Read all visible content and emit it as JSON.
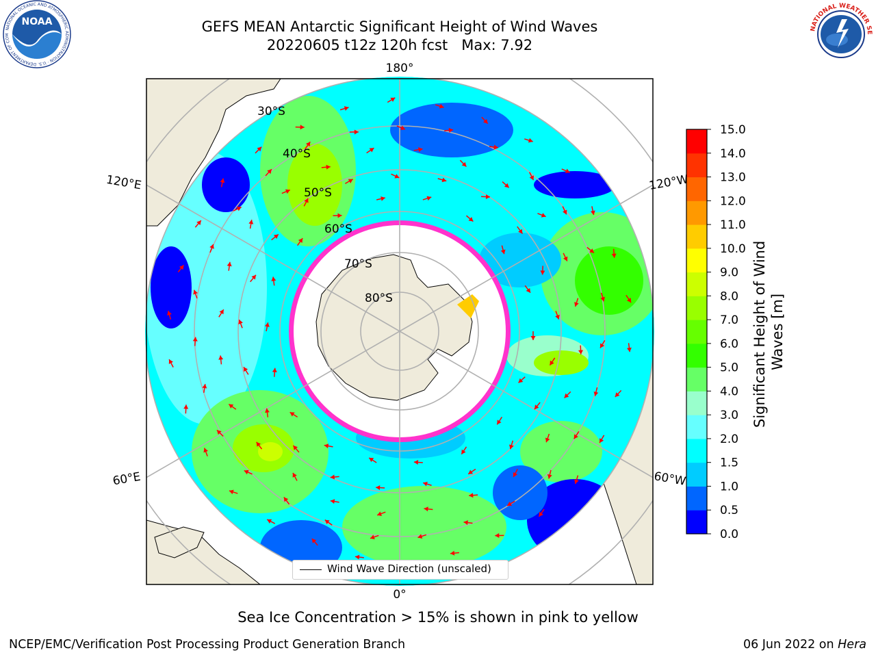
{
  "title": {
    "line1": "GEFS MEAN Antarctic Significant Height of Wind Waves",
    "line2": "20220605 t12z 120h fcst   Max: 7.92"
  },
  "logos": {
    "left": {
      "name": "noaa-logo",
      "text": "NOAA",
      "ring_text": "NATIONAL OCEANIC AND ATMOSPHERIC ADMINISTRATION · U.S. DEPARTMENT OF COMMERCE"
    },
    "right": {
      "name": "nws-logo",
      "ring_text": "NATIONAL WEATHER SERVICE"
    }
  },
  "map": {
    "longitude_labels": {
      "top": "180°",
      "bottom": "0°",
      "upper_left": "120°E",
      "upper_right": "120°W",
      "lower_left": "60°E",
      "lower_right": "60°W"
    },
    "latitude_labels": [
      "30°S",
      "40°S",
      "50°S",
      "60°S",
      "70°S",
      "80°S"
    ],
    "legend_label": "Wind Wave Direction (unscaled)",
    "colors": {
      "land": "#efebdb",
      "ice_edge": "#ff33cc",
      "arrow": "#ff0000",
      "grid": "#b0b0b0"
    }
  },
  "colorbar": {
    "label": "Significant Height of Wind Waves [m]",
    "ticks": [
      "0.0",
      "0.5",
      "1.0",
      "1.5",
      "2.0",
      "3.0",
      "4.0",
      "5.0",
      "6.0",
      "7.0",
      "8.0",
      "9.0",
      "10.0",
      "11.0",
      "12.0",
      "13.0",
      "14.0",
      "15.0"
    ],
    "colors": [
      "#0000ff",
      "#0066ff",
      "#00ccff",
      "#00ffff",
      "#66ffff",
      "#99ffcc",
      "#66ff66",
      "#33ff00",
      "#66ff00",
      "#99ff00",
      "#ccff00",
      "#ffff00",
      "#ffcc00",
      "#ff9900",
      "#ff6600",
      "#ff3300",
      "#ff0000"
    ]
  },
  "footer": {
    "note": "Sea Ice Concentration > 15% is shown in pink to yellow",
    "left": "NCEP/EMC/Verification Post Processing Product Generation Branch",
    "right_prefix": "06 Jun 2022 on ",
    "right_machine": "Hera"
  }
}
